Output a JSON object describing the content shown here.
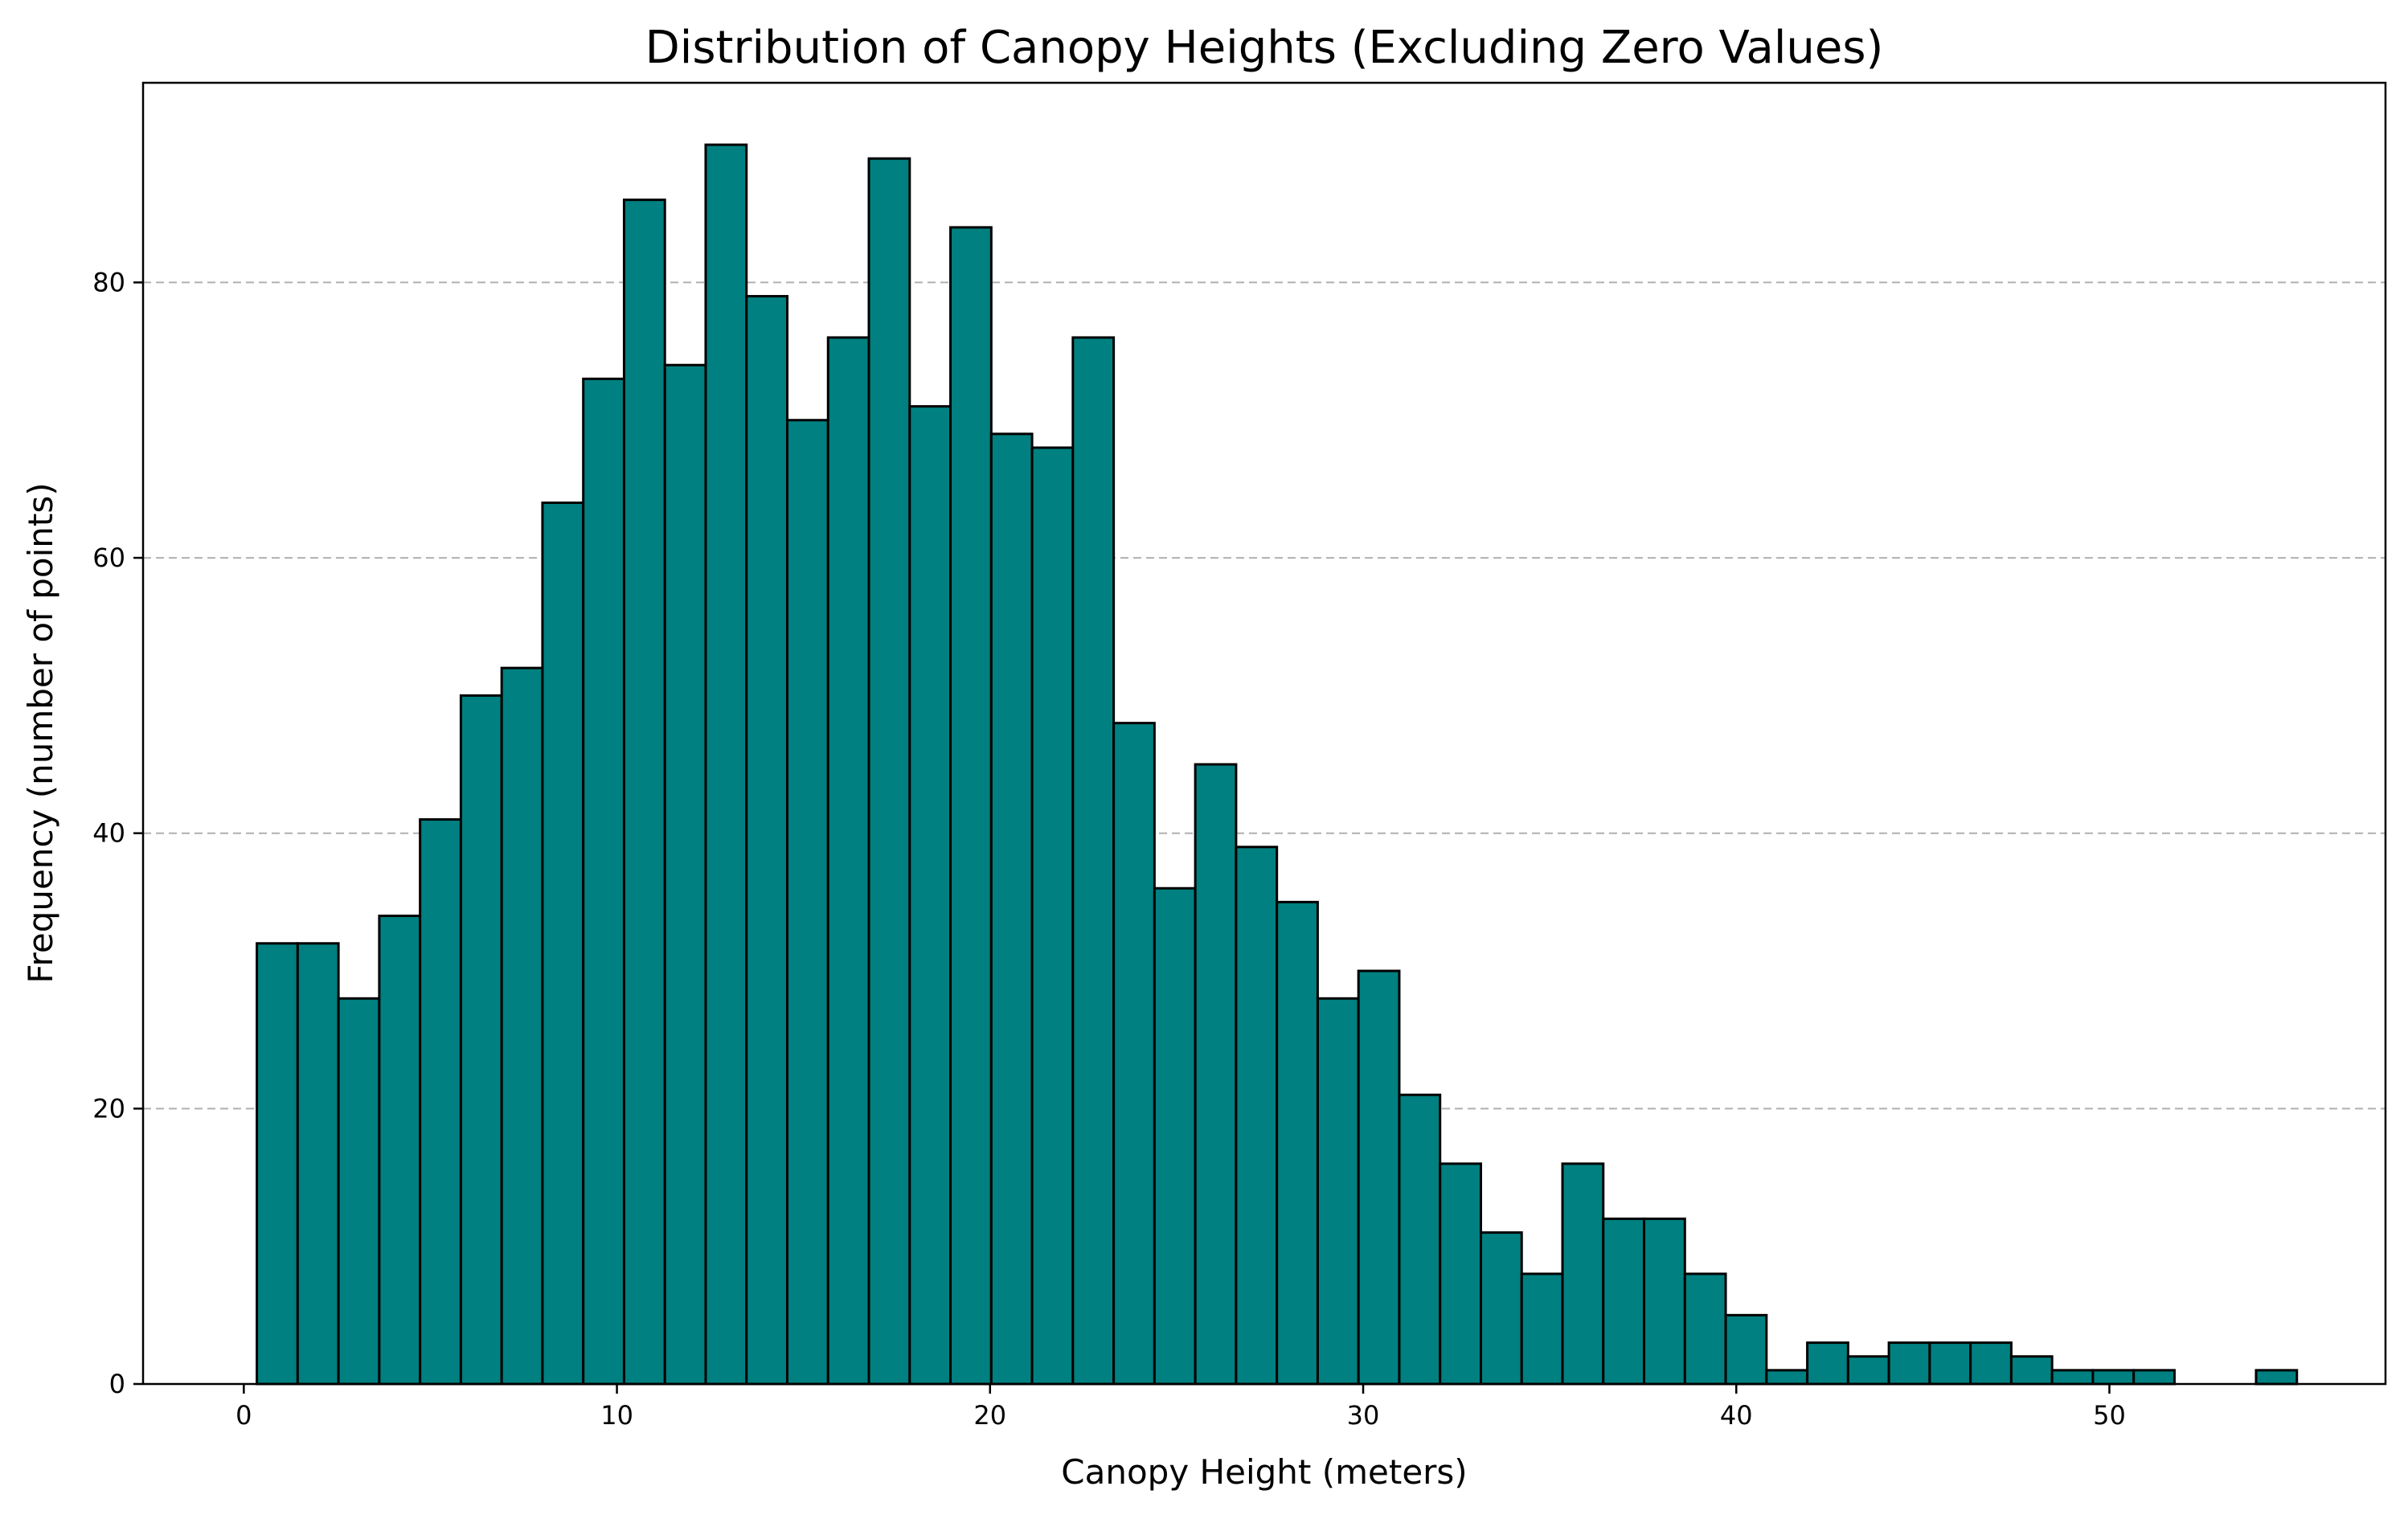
{
  "chart_data": {
    "type": "bar",
    "title": "Distribution of Canopy Heights (Excluding Zero Values)",
    "xlabel": "Canopy Height (meters)",
    "ylabel": "Frequency (number of points)",
    "xlim": [
      -2.7,
      57.4
    ],
    "ylim": [
      0,
      94.5
    ],
    "x_ticks": [
      0,
      10,
      20,
      30,
      40,
      50
    ],
    "y_ticks": [
      0,
      20,
      40,
      60,
      80
    ],
    "grid": {
      "y": true,
      "x": false,
      "style": "dashed"
    },
    "bar_color": "#008080",
    "edge_color": "#000000",
    "grid_color": "#b0b0b0",
    "bin_start": 0.35,
    "bin_width": 1.0935,
    "values": [
      32,
      32,
      28,
      34,
      41,
      50,
      52,
      64,
      73,
      86,
      74,
      90,
      79,
      70,
      76,
      89,
      71,
      84,
      69,
      68,
      76,
      48,
      36,
      45,
      39,
      35,
      28,
      30,
      21,
      16,
      11,
      8,
      16,
      12,
      12,
      8,
      5,
      1,
      3,
      2,
      3,
      3,
      3,
      2,
      1,
      1,
      1,
      0,
      0,
      1
    ]
  }
}
